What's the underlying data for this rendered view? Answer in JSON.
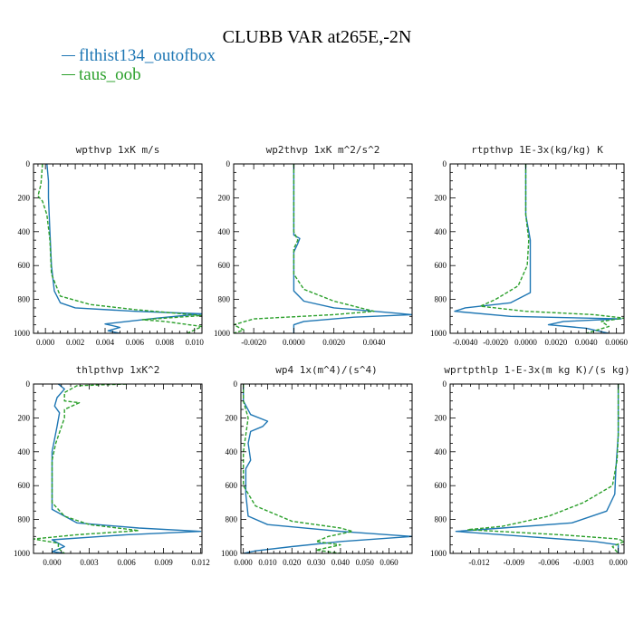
{
  "title": "CLUBB VAR at265E,-2N",
  "legend": [
    {
      "name": "flthist134_outofbox",
      "color": "#1f77b4"
    },
    {
      "name": "taus_oob",
      "color": "#2ca02c"
    }
  ],
  "chart_data": [
    {
      "type": "line",
      "title": "wpthvp  1xK m/s",
      "xlim": [
        -0.0008,
        0.0105
      ],
      "ylim": [
        0,
        1000
      ],
      "xticks": [
        0,
        0.002,
        0.004,
        0.006,
        0.008,
        0.01
      ],
      "xtick_labels": [
        "0.000",
        "0.002",
        "0.004",
        "0.006",
        "0.008",
        "0.010"
      ],
      "yticks": [
        0,
        200,
        400,
        600,
        800,
        1000
      ],
      "series": [
        {
          "name": "flthist134_outofbox",
          "points": [
            [
              0.0001,
              0
            ],
            [
              0.0002,
              100
            ],
            [
              0.0002,
              200
            ],
            [
              0.0003,
              400
            ],
            [
              0.0004,
              600
            ],
            [
              0.0006,
              750
            ],
            [
              0.001,
              820
            ],
            [
              0.002,
              850
            ],
            [
              0.006,
              870
            ],
            [
              0.0105,
              885
            ],
            [
              0.0075,
              910
            ],
            [
              0.004,
              945
            ],
            [
              0.005,
              965
            ],
            [
              0.0042,
              985
            ],
            [
              0.005,
              1000
            ]
          ]
        },
        {
          "name": "taus_oob",
          "points": [
            [
              -0.0002,
              0
            ],
            [
              -0.0003,
              120
            ],
            [
              -0.0005,
              190
            ],
            [
              -0.0002,
              220
            ],
            [
              0.0001,
              300
            ],
            [
              0.0003,
              450
            ],
            [
              0.0004,
              650
            ],
            [
              0.001,
              780
            ],
            [
              0.003,
              830
            ],
            [
              0.006,
              860
            ],
            [
              0.0105,
              895
            ],
            [
              0.0065,
              920
            ],
            [
              0.008,
              930
            ],
            [
              0.0105,
              960
            ],
            [
              0.01,
              980
            ],
            [
              0.0095,
              1000
            ]
          ]
        }
      ]
    },
    {
      "type": "line",
      "title": "wp2thvp  1xK m^2/s^2",
      "xlim": [
        -0.003,
        0.0059
      ],
      "ylim": [
        0,
        1000
      ],
      "xticks": [
        -0.002,
        0,
        0.002,
        0.004
      ],
      "xtick_labels": [
        "-0.0020",
        "0.0000",
        "0.0020",
        "0.0040"
      ],
      "yticks": [
        0,
        200,
        400,
        600,
        800,
        1000
      ],
      "series": [
        {
          "name": "flthist134_outofbox",
          "points": [
            [
              0,
              0
            ],
            [
              0,
              300
            ],
            [
              0,
              420
            ],
            [
              0.0003,
              440
            ],
            [
              0.0002,
              470
            ],
            [
              0,
              520
            ],
            [
              0,
              750
            ],
            [
              0.0005,
              810
            ],
            [
              0.002,
              850
            ],
            [
              0.005,
              880
            ],
            [
              0.0059,
              890
            ],
            [
              0.003,
              905
            ],
            [
              0.0005,
              930
            ],
            [
              0,
              950
            ],
            [
              0,
              1000
            ]
          ]
        },
        {
          "name": "taus_oob",
          "points": [
            [
              0,
              0
            ],
            [
              0,
              300
            ],
            [
              0,
              400
            ],
            [
              0.0002,
              450
            ],
            [
              0,
              500
            ],
            [
              0,
              650
            ],
            [
              0.0005,
              740
            ],
            [
              0.002,
              810
            ],
            [
              0.004,
              870
            ],
            [
              0.002,
              890
            ],
            [
              -0.002,
              915
            ],
            [
              -0.003,
              950
            ],
            [
              -0.0025,
              980
            ],
            [
              -0.003,
              1000
            ]
          ]
        }
      ]
    },
    {
      "type": "line",
      "title": "rtpthvp  1E-3x(kg/kg) K",
      "xlim": [
        -0.005,
        0.0065
      ],
      "ylim": [
        0,
        1000
      ],
      "xticks": [
        -0.004,
        -0.002,
        0,
        0.002,
        0.004,
        0.006
      ],
      "xtick_labels": [
        "-0.0040",
        "-0.0020",
        "0.0000",
        "0.0020",
        "0.0040",
        "0.0060"
      ],
      "yticks": [
        0,
        200,
        400,
        600,
        800,
        1000
      ],
      "series": [
        {
          "name": "flthist134_outofbox",
          "points": [
            [
              0,
              0
            ],
            [
              0,
              300
            ],
            [
              0.0003,
              450
            ],
            [
              0.0003,
              600
            ],
            [
              0.0003,
              760
            ],
            [
              -0.001,
              820
            ],
            [
              -0.004,
              850
            ],
            [
              -0.0047,
              870
            ],
            [
              -0.001,
              900
            ],
            [
              0.0063,
              915
            ],
            [
              0.0025,
              930
            ],
            [
              0.0015,
              950
            ],
            [
              0.004,
              970
            ],
            [
              0.0055,
              1000
            ]
          ]
        },
        {
          "name": "taus_oob",
          "points": [
            [
              0,
              0
            ],
            [
              0,
              300
            ],
            [
              0.0002,
              450
            ],
            [
              0.0001,
              600
            ],
            [
              -0.0005,
              720
            ],
            [
              -0.002,
              800
            ],
            [
              -0.003,
              840
            ],
            [
              0,
              870
            ],
            [
              0.0045,
              890
            ],
            [
              0.0065,
              910
            ],
            [
              0.005,
              930
            ],
            [
              0.0055,
              960
            ],
            [
              0.004,
              1000
            ]
          ]
        }
      ]
    },
    {
      "type": "line",
      "title": "thlpthvp  1xK^2",
      "xlim": [
        -0.0015,
        0.0121
      ],
      "ylim": [
        0,
        1000
      ],
      "xticks": [
        0,
        0.003,
        0.006,
        0.009,
        0.012
      ],
      "xtick_labels": [
        "0.000",
        "0.003",
        "0.006",
        "0.009",
        "0.012"
      ],
      "yticks": [
        0,
        200,
        400,
        600,
        800,
        1000
      ],
      "series": [
        {
          "name": "flthist134_outofbox",
          "points": [
            [
              0.0005,
              0
            ],
            [
              0.001,
              30
            ],
            [
              0.0004,
              80
            ],
            [
              0.0002,
              130
            ],
            [
              0.0006,
              170
            ],
            [
              0.0004,
              250
            ],
            [
              0,
              400
            ],
            [
              0,
              550
            ],
            [
              0,
              740
            ],
            [
              0.002,
              820
            ],
            [
              0.007,
              850
            ],
            [
              0.012,
              870
            ],
            [
              0.006,
              890
            ],
            [
              0,
              920
            ],
            [
              0.001,
              960
            ],
            [
              0,
              990
            ],
            [
              0.001,
              1000
            ]
          ]
        },
        {
          "name": "taus_oob",
          "points": [
            [
              0.006,
              0
            ],
            [
              0.002,
              10
            ],
            [
              0.001,
              50
            ],
            [
              0.001,
              100
            ],
            [
              0.0022,
              110
            ],
            [
              0.001,
              150
            ],
            [
              0.001,
              200
            ],
            [
              0.0003,
              350
            ],
            [
              0,
              450
            ],
            [
              0,
              600
            ],
            [
              0,
              700
            ],
            [
              0.001,
              780
            ],
            [
              0.003,
              830
            ],
            [
              0.007,
              865
            ],
            [
              0.002,
              890
            ],
            [
              -0.0015,
              915
            ],
            [
              0.0005,
              940
            ],
            [
              0.0005,
              970
            ],
            [
              0.001,
              1000
            ]
          ]
        }
      ]
    },
    {
      "type": "line",
      "title": "wp4  1x(m^4)/(s^4)",
      "xlim": [
        -0.001,
        0.0695
      ],
      "ylim": [
        0,
        1000
      ],
      "xticks": [
        0,
        0.01,
        0.02,
        0.03,
        0.04,
        0.05,
        0.06
      ],
      "xtick_labels": [
        "0.000",
        "0.010",
        "0.020",
        "0.030",
        "0.040",
        "0.050",
        "0.060"
      ],
      "yticks": [
        0,
        200,
        400,
        600,
        800,
        1000
      ],
      "series": [
        {
          "name": "flthist134_outofbox",
          "points": [
            [
              0,
              0
            ],
            [
              0,
              100
            ],
            [
              0.003,
              180
            ],
            [
              0.01,
              220
            ],
            [
              0.008,
              250
            ],
            [
              0.003,
              280
            ],
            [
              0.002,
              350
            ],
            [
              0.003,
              450
            ],
            [
              0.001,
              500
            ],
            [
              0.001,
              650
            ],
            [
              0.002,
              780
            ],
            [
              0.01,
              830
            ],
            [
              0.04,
              870
            ],
            [
              0.0695,
              900
            ],
            [
              0.04,
              930
            ],
            [
              0.02,
              960
            ],
            [
              0.005,
              985
            ],
            [
              0,
              1000
            ]
          ]
        },
        {
          "name": "taus_oob",
          "points": [
            [
              0,
              0
            ],
            [
              0,
              100
            ],
            [
              0.002,
              200
            ],
            [
              0.001,
              300
            ],
            [
              0,
              400
            ],
            [
              0,
              600
            ],
            [
              0.005,
              720
            ],
            [
              0.02,
              810
            ],
            [
              0.04,
              850
            ],
            [
              0.045,
              870
            ],
            [
              0.035,
              900
            ],
            [
              0.03,
              930
            ],
            [
              0.04,
              950
            ],
            [
              0.03,
              980
            ],
            [
              0.04,
              1000
            ]
          ]
        }
      ]
    },
    {
      "type": "line",
      "title": "wprtpthlp  1-E-3x(m kg K)/(s kg)",
      "xlim": [
        -0.0145,
        0.0005
      ],
      "ylim": [
        0,
        1000
      ],
      "xticks": [
        -0.012,
        -0.009,
        -0.006,
        -0.003,
        0
      ],
      "xtick_labels": [
        "-0.012",
        "-0.009",
        "-0.006",
        "-0.003",
        "0.000"
      ],
      "yticks": [
        0,
        200,
        400,
        600,
        800,
        1000
      ],
      "series": [
        {
          "name": "flthist134_outofbox",
          "points": [
            [
              0,
              0
            ],
            [
              0,
              300
            ],
            [
              -0.0002,
              500
            ],
            [
              -0.0003,
              650
            ],
            [
              -0.001,
              750
            ],
            [
              -0.004,
              820
            ],
            [
              -0.01,
              850
            ],
            [
              -0.014,
              870
            ],
            [
              -0.008,
              900
            ],
            [
              -0.002,
              930
            ],
            [
              0,
              950
            ],
            [
              0,
              1000
            ]
          ]
        },
        {
          "name": "taus_oob",
          "points": [
            [
              0,
              0
            ],
            [
              0,
              300
            ],
            [
              -0.0001,
              450
            ],
            [
              -0.0005,
              600
            ],
            [
              -0.003,
              700
            ],
            [
              -0.006,
              780
            ],
            [
              -0.01,
              840
            ],
            [
              -0.013,
              860
            ],
            [
              -0.005,
              890
            ],
            [
              0,
              915
            ],
            [
              0.0005,
              930
            ],
            [
              -0.0005,
              960
            ],
            [
              0,
              1000
            ]
          ]
        }
      ]
    }
  ]
}
